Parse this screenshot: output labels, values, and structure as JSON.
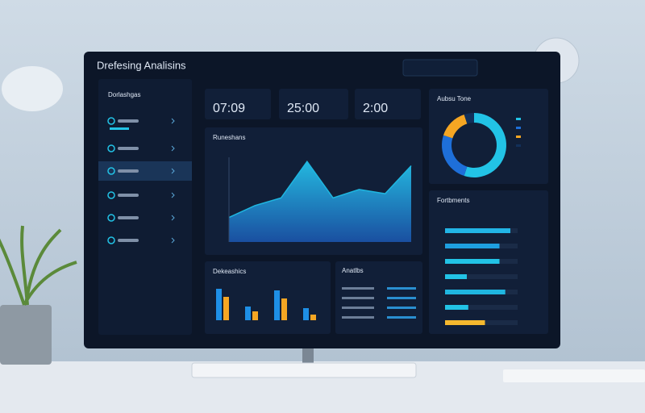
{
  "header": {
    "title": "Drefesing Analisins"
  },
  "sidebar": {
    "title": "Dorlashgas"
  },
  "stats": [
    "07:09",
    "25:00",
    "2:00"
  ],
  "table": {
    "title": "Anatlbs"
  },
  "chart_data": [
    {
      "type": "area",
      "title": "Runeshans",
      "color": "#1fb6e0",
      "ylim": [
        0,
        100
      ],
      "values": [
        29,
        43,
        52,
        95,
        52,
        62,
        57,
        90
      ]
    },
    {
      "type": "donut",
      "title": "Aubsu Tone",
      "values": [
        55,
        25,
        15,
        5
      ],
      "colors": [
        "#22c3e6",
        "#1e6fd9",
        "#f5a623",
        "#12305a"
      ]
    },
    {
      "type": "hbar",
      "title": "Fortbments",
      "xlim": [
        0,
        100
      ],
      "values": [
        90,
        75,
        75,
        30,
        83,
        32,
        55
      ],
      "colors": [
        "#22b5e6",
        "#1e9fe0",
        "#22c3e6",
        "#22c3e6",
        "#1fb6e0",
        "#22c3e6",
        "#f5b82e"
      ]
    },
    {
      "type": "bar",
      "title": "Dekeashics",
      "ylim": [
        0,
        50
      ],
      "series": [
        {
          "color": "#1e8fe6",
          "values": [
            39,
            17,
            37,
            15
          ]
        },
        {
          "color": "#f5a623",
          "values": [
            29,
            11,
            27,
            7
          ]
        }
      ]
    }
  ]
}
